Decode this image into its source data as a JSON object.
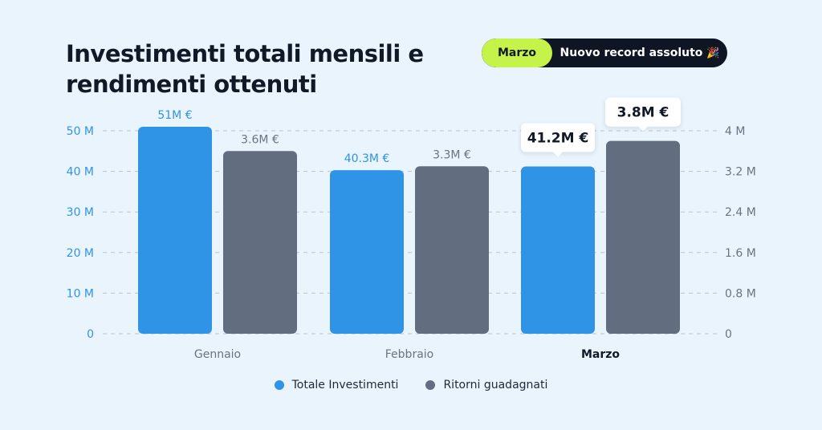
{
  "chart_data": {
    "type": "bar",
    "title": "Investimenti totali mensili e rendimenti ottenuti",
    "categories": [
      "Gennaio",
      "Febbraio",
      "Marzo"
    ],
    "highlight_category": "Marzo",
    "series": [
      {
        "name": "Totale Investimenti",
        "axis": "left",
        "color": "#2f94e6",
        "values": [
          51,
          40.3,
          41.2
        ],
        "labels": [
          "51M €",
          "40.3M €",
          "41.2M €"
        ]
      },
      {
        "name": "Ritorni guadagnati",
        "axis": "right",
        "color": "#636d80",
        "values": [
          3.6,
          3.3,
          3.8
        ],
        "labels": [
          "3.6M €",
          "3.3M €",
          "3.8M €"
        ]
      }
    ],
    "y_left": {
      "ylim": [
        0,
        50
      ],
      "ticks": [
        "0",
        "10 M",
        "20 M",
        "30 M",
        "40 M",
        "50 M"
      ]
    },
    "y_right": {
      "ylim": [
        0,
        4
      ],
      "ticks": [
        "0",
        "0.8 M",
        "1.6 M",
        "2.4 M",
        "3.2 M",
        "4 M"
      ]
    },
    "grid": true,
    "legend_position": "bottom-center"
  },
  "badge": {
    "tag": "Marzo",
    "text": "Nuovo record assoluto",
    "emoji": "🎉"
  },
  "colors": {
    "background": "#eaf4fd",
    "accent_green": "#c5f34a",
    "pill_dark": "#0f1623",
    "left_axis_text": "#2f94e6",
    "right_axis_text": "#6b7280"
  }
}
